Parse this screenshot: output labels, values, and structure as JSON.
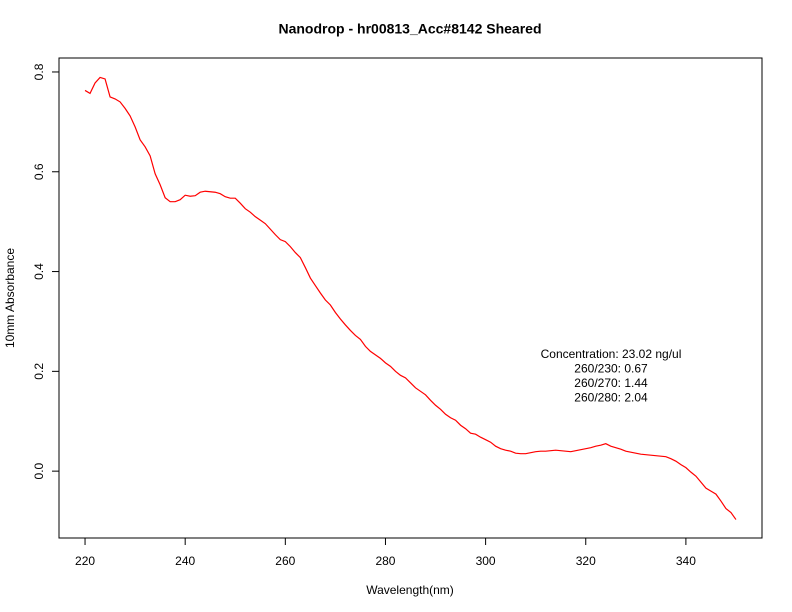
{
  "chart_data": {
    "type": "line",
    "title": "Nanodrop - hr00813_Acc#8142 Sheared",
    "x_label": "Wavelength(nm)",
    "y_label": "10mm Absorbance",
    "annotations": [
      "Concentration: 23.02 ng/ul",
      "260/230: 0.67",
      "260/270: 1.44",
      "260/280: 2.04"
    ],
    "x": [
      220,
      221,
      222,
      223,
      224,
      225,
      226,
      227,
      228,
      229,
      230,
      231,
      232,
      233,
      234,
      235,
      236,
      237,
      238,
      239,
      240,
      241,
      242,
      243,
      244,
      245,
      246,
      247,
      248,
      249,
      250,
      251,
      252,
      253,
      254,
      255,
      256,
      257,
      258,
      259,
      260,
      261,
      262,
      263,
      264,
      265,
      266,
      267,
      268,
      269,
      270,
      271,
      272,
      273,
      274,
      275,
      276,
      277,
      278,
      279,
      280,
      281,
      282,
      283,
      284,
      285,
      286,
      287,
      288,
      289,
      290,
      291,
      292,
      293,
      294,
      295,
      296,
      297,
      298,
      299,
      300,
      301,
      302,
      303,
      304,
      305,
      306,
      307,
      308,
      309,
      310,
      311,
      312,
      313,
      314,
      315,
      316,
      317,
      318,
      319,
      320,
      321,
      322,
      323,
      324,
      325,
      326,
      327,
      328,
      329,
      330,
      331,
      332,
      333,
      334,
      335,
      336,
      337,
      338,
      339,
      340,
      341,
      342,
      343,
      344,
      345,
      346,
      347,
      348,
      349,
      350
    ],
    "series": [
      {
        "color": "#ff0000",
        "values": [
          0.763,
          0.757,
          0.778,
          0.789,
          0.786,
          0.75,
          0.746,
          0.74,
          0.727,
          0.712,
          0.69,
          0.664,
          0.65,
          0.632,
          0.596,
          0.574,
          0.548,
          0.54,
          0.54,
          0.544,
          0.553,
          0.551,
          0.552,
          0.559,
          0.561,
          0.56,
          0.559,
          0.556,
          0.55,
          0.547,
          0.547,
          0.537,
          0.526,
          0.519,
          0.51,
          0.503,
          0.496,
          0.485,
          0.474,
          0.464,
          0.46,
          0.45,
          0.438,
          0.428,
          0.408,
          0.387,
          0.372,
          0.357,
          0.343,
          0.333,
          0.318,
          0.305,
          0.293,
          0.282,
          0.272,
          0.264,
          0.25,
          0.24,
          0.233,
          0.226,
          0.217,
          0.21,
          0.2,
          0.192,
          0.187,
          0.177,
          0.167,
          0.16,
          0.153,
          0.142,
          0.132,
          0.124,
          0.114,
          0.107,
          0.102,
          0.092,
          0.085,
          0.076,
          0.074,
          0.068,
          0.063,
          0.058,
          0.05,
          0.045,
          0.042,
          0.04,
          0.036,
          0.035,
          0.035,
          0.037,
          0.039,
          0.04,
          0.04,
          0.041,
          0.042,
          0.041,
          0.04,
          0.039,
          0.041,
          0.043,
          0.045,
          0.047,
          0.05,
          0.052,
          0.055,
          0.05,
          0.047,
          0.044,
          0.04,
          0.038,
          0.036,
          0.034,
          0.033,
          0.032,
          0.031,
          0.03,
          0.029,
          0.025,
          0.02,
          0.013,
          0.007,
          -0.002,
          -0.01,
          -0.022,
          -0.034,
          -0.04,
          -0.046,
          -0.06,
          -0.075,
          -0.083,
          -0.097
        ]
      }
    ],
    "xlim": [
      214.8,
      355.2
    ],
    "ylim": [
      -0.134,
      0.828
    ],
    "xticks": [
      220,
      240,
      260,
      280,
      300,
      320,
      340
    ],
    "yticks": [
      {
        "value": 0,
        "label": "0.0"
      },
      0.2,
      0.4,
      0.6,
      0.8
    ]
  }
}
